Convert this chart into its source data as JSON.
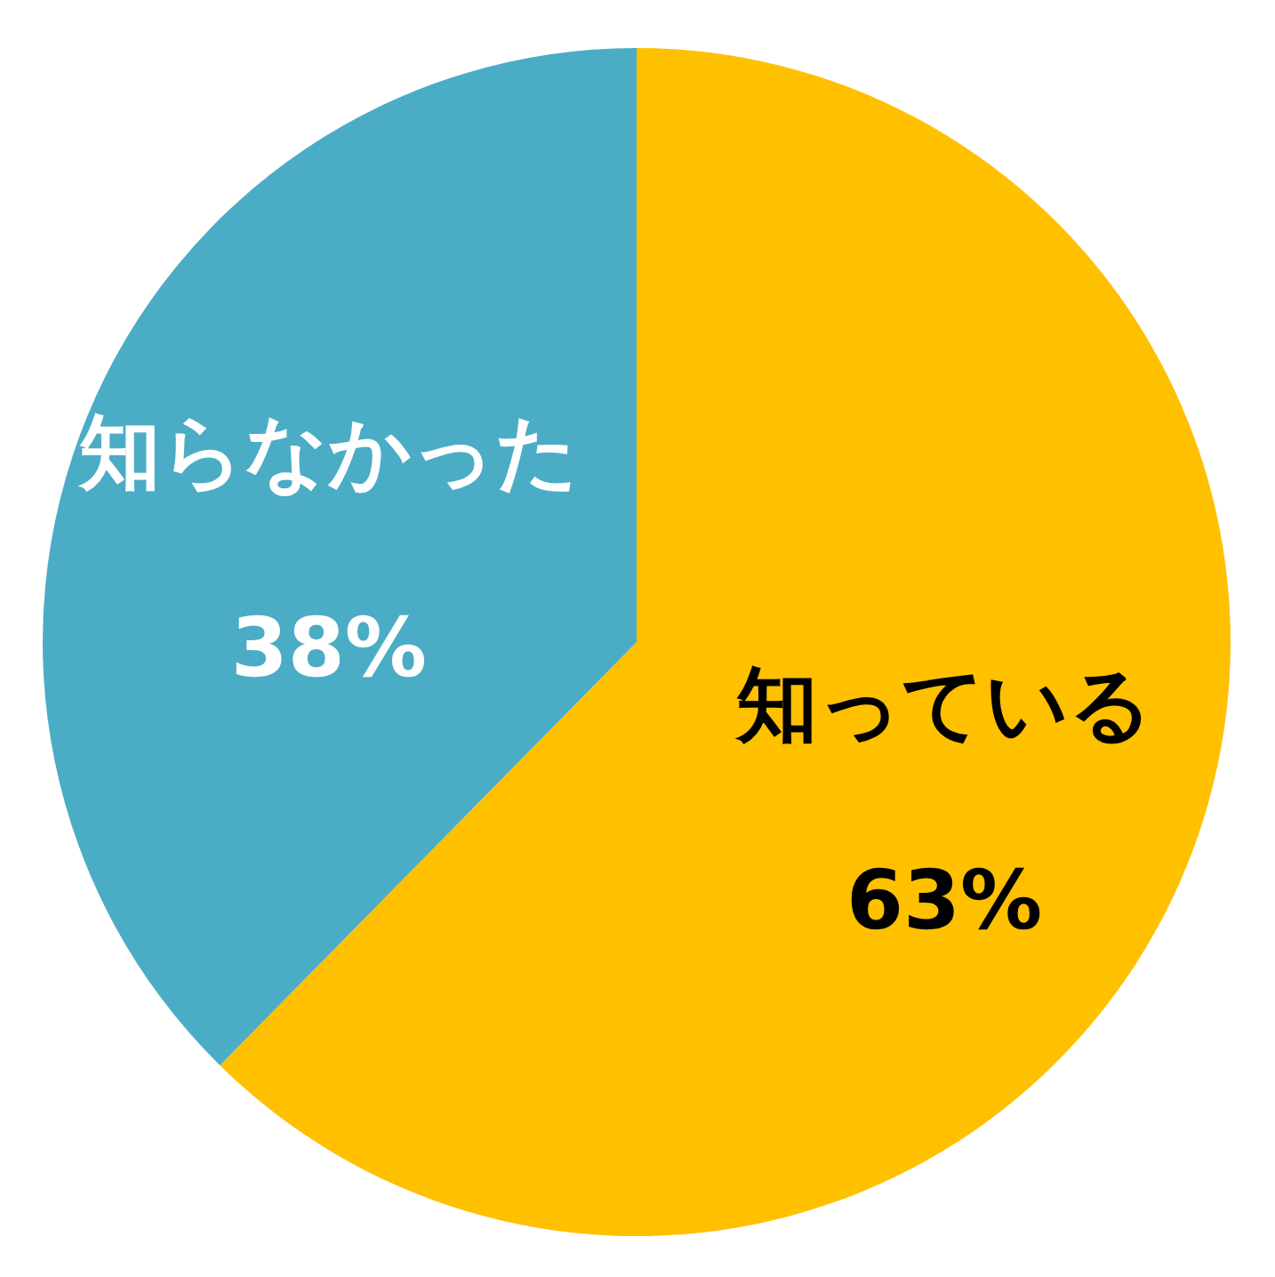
{
  "chart_data": {
    "type": "pie",
    "categories": [
      "知っている",
      "知らなかった"
    ],
    "values": [
      63,
      38
    ],
    "colors": [
      "#ffc000",
      "#4bacc6"
    ],
    "value_labels": [
      "63%",
      "38%"
    ]
  }
}
